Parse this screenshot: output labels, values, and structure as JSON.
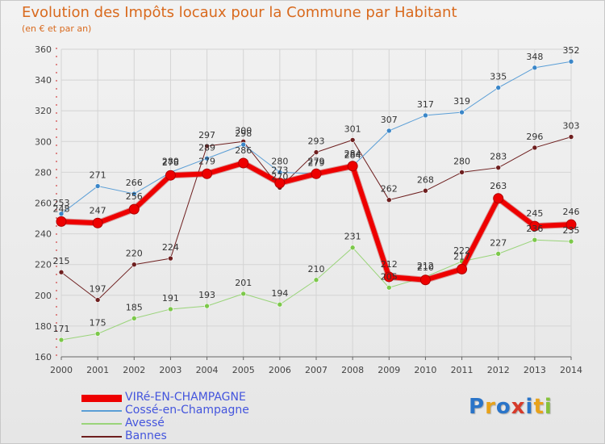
{
  "header": {
    "title": "Evolution des Impôts locaux pour la Commune par Habitant",
    "subtitle": "(en € et par an)"
  },
  "logo": {
    "text": "Proxiti",
    "letters": [
      {
        "ch": "P",
        "color": "#2a74c8"
      },
      {
        "ch": "r",
        "color": "#e8a21a"
      },
      {
        "ch": "o",
        "color": "#2a74c8"
      },
      {
        "ch": "x",
        "color": "#d63a2a"
      },
      {
        "ch": "i",
        "color": "#2a74c8"
      },
      {
        "ch": "t",
        "color": "#e8a21a"
      },
      {
        "ch": "i",
        "color": "#86c23a"
      }
    ]
  },
  "chart_data": {
    "type": "line",
    "title": "Evolution des Impôts locaux pour la Commune par Habitant",
    "subtitle": "(en € et par an)",
    "x": [
      "2000",
      "2001",
      "2002",
      "2003",
      "2004",
      "2005",
      "2006",
      "2007",
      "2008",
      "2009",
      "2010",
      "2011",
      "2012",
      "2013",
      "2014"
    ],
    "ylim": [
      160,
      360
    ],
    "yticks": [
      160,
      180,
      200,
      220,
      240,
      260,
      280,
      300,
      320,
      340,
      360
    ],
    "grid": true,
    "legend_position": "bottom-left",
    "series": [
      {
        "name": "Bannes",
        "color": "#6e1f1f",
        "point_color": "#6e1f1f",
        "width": 1,
        "values": [
          215,
          197,
          220,
          224,
          297,
          300,
          270,
          293,
          301,
          262,
          268,
          280,
          283,
          296,
          303
        ]
      },
      {
        "name": "Avessé",
        "color": "#9ad47a",
        "point_color": "#7cc84a",
        "width": 1,
        "values": [
          171,
          175,
          185,
          191,
          193,
          201,
          194,
          210,
          231,
          205,
          212,
          222,
          227,
          236,
          235
        ]
      },
      {
        "name": "Cossé-en-Champagne",
        "color": "#5a9ed6",
        "point_color": "#3a86c8",
        "width": 1,
        "values": [
          253,
          271,
          266,
          280,
          289,
          298,
          280,
          279,
          284,
          307,
          317,
          319,
          335,
          348,
          352
        ]
      },
      {
        "name": "VIRé-EN-CHAMPAGNE",
        "color": "#ee0000",
        "point_color": "#ee0000",
        "width": 6,
        "values": [
          248,
          247,
          256,
          278,
          279,
          286,
          273,
          279,
          284,
          212,
          210,
          217,
          263,
          245,
          246
        ]
      }
    ],
    "legend_order": [
      "VIRé-EN-CHAMPAGNE",
      "Cossé-en-Champagne",
      "Avessé",
      "Bannes"
    ]
  }
}
